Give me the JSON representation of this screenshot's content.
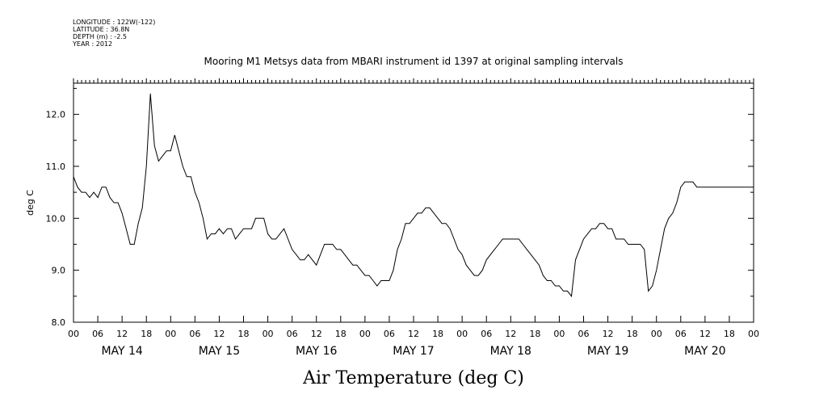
{
  "header": {
    "longitude": "LONGITUDE : 122W(-122)",
    "latitude": "LATITUDE : 36.8N",
    "depth": "DEPTH (m) : -2.5",
    "year": "YEAR : 2012"
  },
  "chart_data": {
    "type": "line",
    "title": "Mooring M1 Metsys data from MBARI instrument id 1397 at original sampling intervals",
    "xlabel": "Air Temperature (deg C)",
    "ylabel": "deg C",
    "ylim": [
      8.0,
      12.6
    ],
    "y_ticks": [
      "8.0",
      "9.0",
      "10.0",
      "11.0",
      "12.0"
    ],
    "x_unit": "hours since 2012-05-14 00:00",
    "xlim": [
      0,
      168
    ],
    "x_tick_labels": [
      "00",
      "06",
      "12",
      "18",
      "00",
      "06",
      "12",
      "18",
      "00",
      "06",
      "12",
      "18",
      "00",
      "06",
      "12",
      "18",
      "00",
      "06",
      "12",
      "18",
      "00",
      "06",
      "12",
      "18",
      "00",
      "06",
      "12",
      "18",
      "00"
    ],
    "day_labels": [
      "MAY 14",
      "MAY 15",
      "MAY 16",
      "MAY 17",
      "MAY 18",
      "MAY 19",
      "MAY 20"
    ],
    "grid": false,
    "series": [
      {
        "x": [
          0,
          1,
          2,
          3,
          4,
          5,
          6,
          7,
          8,
          9,
          10,
          11,
          12,
          13,
          14,
          15,
          16,
          17,
          18,
          19,
          20,
          21,
          22,
          23,
          24,
          25,
          26,
          27,
          28,
          29,
          30,
          31,
          32,
          33,
          34,
          35,
          36,
          37,
          38,
          39,
          40,
          41,
          42,
          43,
          44,
          45,
          46,
          47,
          48,
          49,
          50,
          51,
          52,
          53,
          54,
          55,
          56,
          57,
          58,
          59,
          60,
          61,
          62,
          63,
          64,
          65,
          66,
          67,
          68,
          69,
          70,
          71,
          72,
          73,
          74,
          75,
          76,
          77,
          78,
          79,
          80,
          81,
          82,
          83,
          84,
          85,
          86,
          87,
          88,
          89,
          90,
          91,
          92,
          93,
          94,
          95,
          96,
          97,
          98,
          99,
          100,
          101,
          102,
          103,
          104,
          105,
          106,
          107,
          108,
          109,
          110,
          111,
          112,
          113,
          114,
          115,
          116,
          117,
          118,
          119,
          120,
          121,
          122,
          123,
          124,
          125,
          126,
          127,
          128,
          129,
          130,
          131,
          132,
          133,
          134,
          135,
          136,
          137,
          138,
          139,
          140,
          141,
          142,
          143,
          144,
          145,
          146,
          147,
          148,
          149,
          150,
          151,
          152,
          153,
          154,
          155,
          156,
          157,
          158,
          159,
          160,
          161,
          162,
          163,
          164,
          165,
          166,
          167,
          168
        ],
        "y": [
          10.8,
          10.6,
          10.5,
          10.5,
          10.4,
          10.5,
          10.4,
          10.6,
          10.6,
          10.4,
          10.3,
          10.3,
          10.1,
          9.8,
          9.5,
          9.5,
          9.9,
          10.2,
          11.0,
          12.4,
          11.4,
          11.1,
          11.2,
          11.3,
          11.3,
          11.6,
          11.3,
          11.0,
          10.8,
          10.8,
          10.5,
          10.3,
          10.0,
          9.6,
          9.7,
          9.7,
          9.8,
          9.7,
          9.8,
          9.8,
          9.6,
          9.7,
          9.8,
          9.8,
          9.8,
          10.0,
          10.0,
          10.0,
          9.7,
          9.6,
          9.6,
          9.7,
          9.8,
          9.6,
          9.4,
          9.3,
          9.2,
          9.2,
          9.3,
          9.2,
          9.1,
          9.3,
          9.5,
          9.5,
          9.5,
          9.4,
          9.4,
          9.3,
          9.2,
          9.1,
          9.1,
          9.0,
          8.9,
          8.9,
          8.8,
          8.7,
          8.8,
          8.8,
          8.8,
          9.0,
          9.4,
          9.6,
          9.9,
          9.9,
          10.0,
          10.1,
          10.1,
          10.2,
          10.2,
          10.1,
          10.0,
          9.9,
          9.9,
          9.8,
          9.6,
          9.4,
          9.3,
          9.1,
          9.0,
          8.9,
          8.9,
          9.0,
          9.2,
          9.3,
          9.4,
          9.5,
          9.6,
          9.6,
          9.6,
          9.6,
          9.6,
          9.5,
          9.4,
          9.3,
          9.2,
          9.1,
          8.9,
          8.8,
          8.8,
          8.7,
          8.7,
          8.6,
          8.6,
          8.5,
          9.2,
          9.4,
          9.6,
          9.7,
          9.8,
          9.8,
          9.9,
          9.9,
          9.8,
          9.8,
          9.6,
          9.6,
          9.6,
          9.5,
          9.5,
          9.5,
          9.5,
          9.4,
          8.6,
          8.7,
          9.0,
          9.4,
          9.8,
          10.0,
          10.1,
          10.3,
          10.6,
          10.7,
          10.7,
          10.7,
          10.6,
          10.6,
          10.6,
          10.6,
          10.6,
          10.6,
          10.6,
          10.6,
          10.6,
          10.6,
          10.6,
          10.6,
          10.6,
          10.6,
          10.6
        ]
      }
    ]
  }
}
